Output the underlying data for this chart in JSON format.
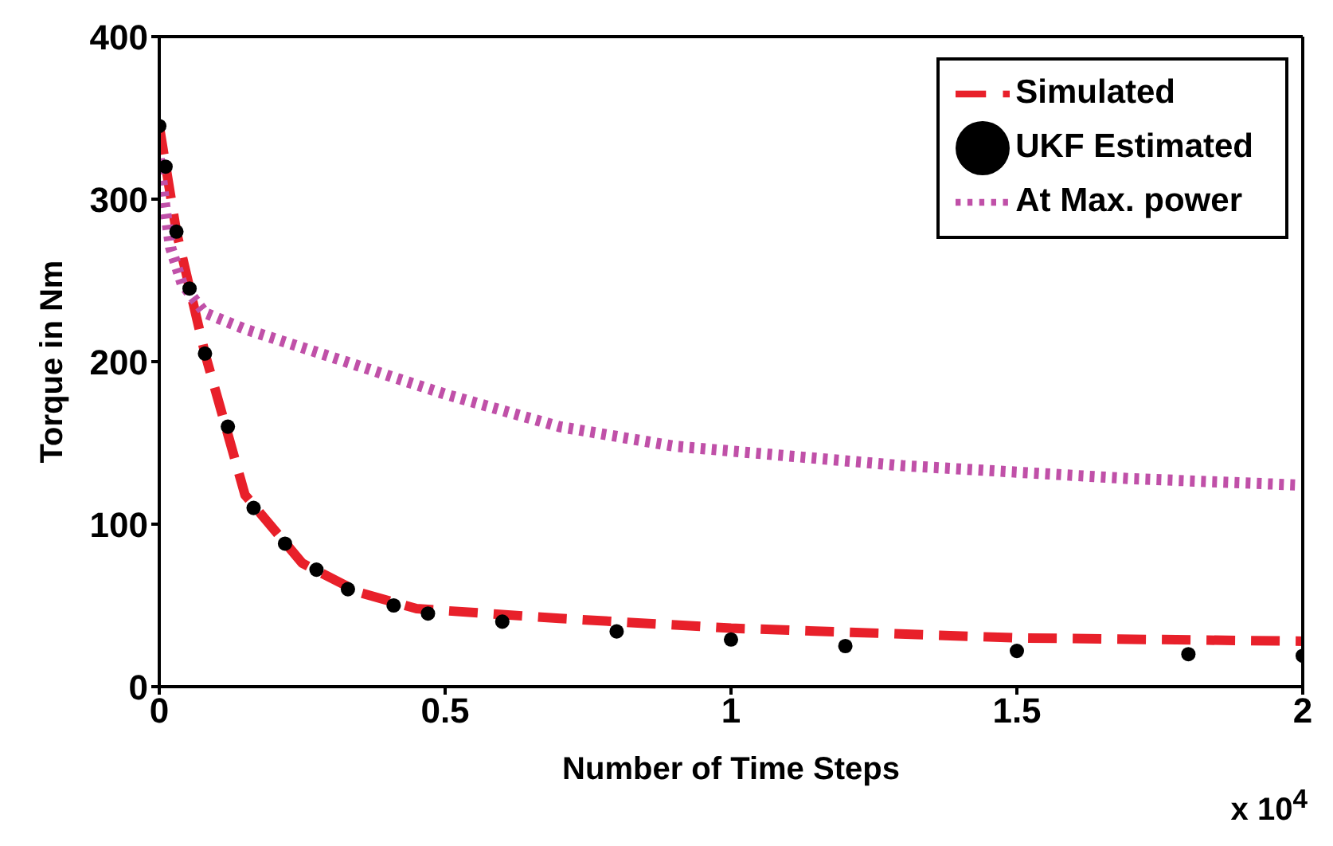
{
  "chart_data": {
    "type": "line",
    "xlabel": "Number of Time Steps",
    "ylabel": "Torque in Nm",
    "xlim": [
      0,
      2
    ],
    "xticks": [
      0,
      0.5,
      1,
      1.5,
      2
    ],
    "ylim": [
      0,
      400
    ],
    "yticks": [
      0,
      100,
      200,
      300,
      400
    ],
    "grid": false,
    "legend": "top right",
    "annotations": [
      "x 10$^{4}$"
    ],
    "series": [
      {
        "name": "Simulated",
        "line_style": "dashed",
        "marker": "none",
        "color": "#e8202a",
        "x": [
          0,
          0.03,
          0.08,
          0.15,
          0.25,
          0.35,
          0.45,
          0.7,
          1.0,
          1.5,
          2.0
        ],
        "values": [
          345,
          280,
          205,
          118,
          76,
          58,
          48,
          42,
          36,
          30,
          28
        ]
      },
      {
        "name": "UKF Estimated",
        "type": "scatter",
        "marker": "circle",
        "color": "#000000",
        "x": [
          0,
          0.011,
          0.03,
          0.053,
          0.08,
          0.12,
          0.165,
          0.22,
          0.275,
          0.33,
          0.41,
          0.47,
          0.6,
          0.8,
          1.0,
          1.2,
          1.5,
          1.8,
          2.0
        ],
        "values": [
          345,
          320,
          280,
          245,
          205,
          160,
          110,
          88,
          72,
          60,
          50,
          45,
          40,
          34,
          29,
          25,
          22,
          20,
          19
        ]
      },
      {
        "name": "At Max. power",
        "line_style": "dotted",
        "marker": "none",
        "color": "#c050a8",
        "x": [
          0,
          0.01,
          0.02,
          0.04,
          0.08,
          0.15,
          0.3,
          0.5,
          0.7,
          0.9,
          1.1,
          1.3,
          1.5,
          1.7,
          2.0
        ],
        "values": [
          325,
          295,
          270,
          248,
          230,
          220,
          203,
          180,
          160,
          148,
          142,
          136,
          132,
          128,
          124
        ]
      }
    ]
  }
}
